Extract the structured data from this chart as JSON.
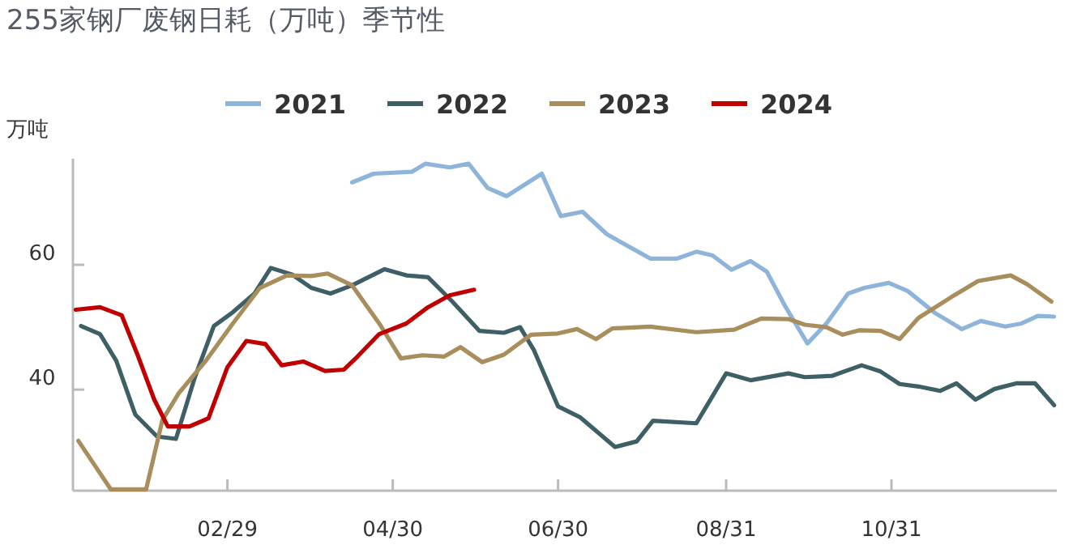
{
  "chart_data": {
    "type": "line",
    "title": "255家钢厂废钢日耗（万吨）季节性",
    "ylabel": "万吨",
    "legend": "top",
    "grid": false,
    "marker": "none",
    "line_style": "solid",
    "xlim": [
      "--01-03",
      "--12-31"
    ],
    "xticks": [
      {
        "value": "--02-29",
        "label": "02/29"
      },
      {
        "value": "--04-30",
        "label": "04/30"
      },
      {
        "value": "--06-30",
        "label": "06/30"
      },
      {
        "value": "--08-31",
        "label": "08/31"
      },
      {
        "value": "--10-31",
        "label": "10/31"
      }
    ],
    "ylim": [
      23.8,
      77
    ],
    "yticks": [
      40,
      60
    ],
    "series": [
      {
        "name": "2021",
        "color": "#8fb4d9",
        "x": [
          "--04-15",
          "--04-23",
          "--05-07",
          "--05-12",
          "--05-21",
          "--05-28",
          "--06-04",
          "--06-11",
          "--06-24",
          "--07-01",
          "--07-09",
          "--07-18",
          "--08-03",
          "--08-13",
          "--08-20",
          "--08-26",
          "--09-02",
          "--09-09",
          "--09-15",
          "--09-22",
          "--09-30",
          "--10-07",
          "--10-15",
          "--10-21",
          "--10-30",
          "--11-06",
          "--11-16",
          "--11-26",
          "--12-03",
          "--12-12",
          "--12-18",
          "--12-24",
          "--12-30"
        ],
        "values": [
          73.2,
          74.6,
          74.9,
          76.2,
          75.6,
          76.2,
          72.3,
          71.0,
          74.6,
          67.8,
          68.5,
          64.9,
          61.0,
          61.0,
          62.1,
          61.5,
          59.2,
          60.6,
          58.9,
          53.2,
          47.4,
          50.6,
          55.4,
          56.3,
          57.1,
          55.8,
          52.3,
          49.7,
          51.0,
          50.1,
          50.6,
          51.8,
          51.7
        ]
      },
      {
        "name": "2022",
        "color": "#3f5f66",
        "x": [
          "--01-06",
          "--01-13",
          "--01-19",
          "--01-26",
          "--02-03",
          "--02-10",
          "--02-17",
          "--02-24",
          "--03-02",
          "--03-10",
          "--03-16",
          "--03-24",
          "--03-31",
          "--04-07",
          "--04-15",
          "--04-27",
          "--05-05",
          "--05-13",
          "--05-22",
          "--06-01",
          "--06-10",
          "--06-16",
          "--06-21",
          "--06-30",
          "--07-08",
          "--07-21",
          "--07-29",
          "--08-04",
          "--08-20",
          "--08-31",
          "--09-09",
          "--09-23",
          "--09-29",
          "--10-09",
          "--10-20",
          "--10-27",
          "--11-03",
          "--11-10",
          "--11-18",
          "--11-24",
          "--12-01",
          "--12-08",
          "--12-16",
          "--12-23",
          "--12-30"
        ],
        "values": [
          50.2,
          48.9,
          44.6,
          36.0,
          32.5,
          32.1,
          42.0,
          50.2,
          52.4,
          55.4,
          59.5,
          58.4,
          56.3,
          55.4,
          56.7,
          59.3,
          58.3,
          58.0,
          54.1,
          49.4,
          49.1,
          50.0,
          46.4,
          37.3,
          35.6,
          30.8,
          31.7,
          35.0,
          34.6,
          42.6,
          41.5,
          42.6,
          42.0,
          42.2,
          43.9,
          42.9,
          40.9,
          40.5,
          39.8,
          41.0,
          38.4,
          40.1,
          41.0,
          41.0,
          37.5
        ]
      },
      {
        "name": "2023",
        "color": "#a88e5c",
        "x": [
          "--01-05",
          "--01-17",
          "--01-30",
          "--02-05",
          "--02-11",
          "--02-21",
          "--03-02",
          "--03-12",
          "--03-22",
          "--03-31",
          "--04-06",
          "--04-15",
          "--04-25",
          "--05-03",
          "--05-11",
          "--05-19",
          "--05-25",
          "--06-02",
          "--06-10",
          "--06-20",
          "--06-30",
          "--07-07",
          "--07-14",
          "--07-20",
          "--08-03",
          "--08-20",
          "--09-03",
          "--09-13",
          "--09-23",
          "--09-29",
          "--10-07",
          "--10-13",
          "--10-19",
          "--10-27",
          "--11-03",
          "--11-10",
          "--11-22",
          "--12-02",
          "--12-14",
          "--12-20",
          "--12-29"
        ],
        "values": [
          31.8,
          24.0,
          24.0,
          35.1,
          39.4,
          44.6,
          50.6,
          56.3,
          58.3,
          58.2,
          58.6,
          56.7,
          50.6,
          45.0,
          45.5,
          45.3,
          46.8,
          44.4,
          45.6,
          48.8,
          49.0,
          49.7,
          48.1,
          49.8,
          50.1,
          49.2,
          49.6,
          51.4,
          51.3,
          50.4,
          50.0,
          48.8,
          49.5,
          49.4,
          48.1,
          51.5,
          54.8,
          57.4,
          58.3,
          56.9,
          54.1
        ]
      },
      {
        "name": "2024",
        "color": "#c00000",
        "x": [
          "--01-04",
          "--01-13",
          "--01-21",
          "--01-27",
          "--02-02",
          "--02-07",
          "--02-15",
          "--02-22",
          "--02-29",
          "--03-07",
          "--03-14",
          "--03-20",
          "--03-28",
          "--04-05",
          "--04-12",
          "--04-17",
          "--04-25",
          "--05-05",
          "--05-13",
          "--05-21",
          "--05-30"
        ],
        "values": [
          52.8,
          53.2,
          51.9,
          45.4,
          38.4,
          34.1,
          34.1,
          35.4,
          43.6,
          47.8,
          47.3,
          43.9,
          44.5,
          43.0,
          43.2,
          45.3,
          48.9,
          50.6,
          53.2,
          55.1,
          56.0
        ]
      }
    ]
  }
}
